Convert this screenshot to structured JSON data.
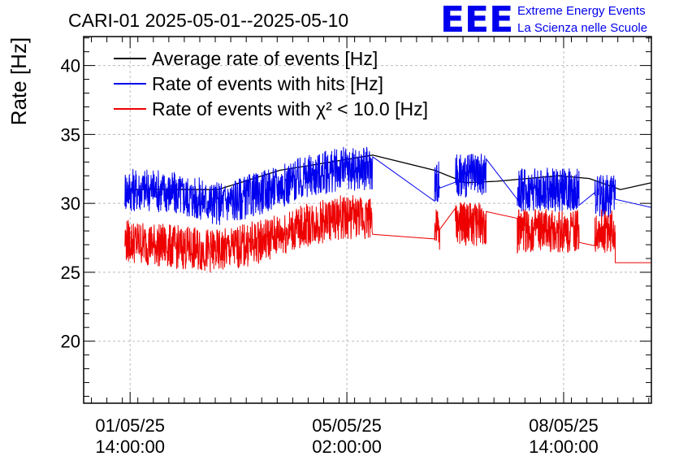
{
  "brand": {
    "logo": "EEE",
    "line1": "Extreme Energy Events",
    "line2": "La Scienza nelle Scuole",
    "color": "#0000ee"
  },
  "chart_data": {
    "type": "line",
    "title": "CARI-01 2025-05-01--2025-05-10",
    "ylabel": "Rate [Hz]",
    "xlabel": "",
    "ylim": [
      15.5,
      42.1
    ],
    "yticks": [
      20,
      25,
      30,
      35,
      40
    ],
    "xlim": [
      "2025-04-30T20:00:00",
      "2025-05-10T00:00:00"
    ],
    "xticks": [
      {
        "time": "2025-05-01T14:00:00",
        "date": "01/05/25",
        "clock": "14:00:00"
      },
      {
        "time": "2025-05-05T02:00:00",
        "date": "05/05/25",
        "clock": "02:00:00"
      },
      {
        "time": "2025-05-08T14:00:00",
        "date": "08/05/25",
        "clock": "14:00:00"
      }
    ],
    "grid": true,
    "legend_position": "top-left",
    "series": [
      {
        "name": "Average rate of events [Hz]",
        "color": "#000000",
        "style": "stepped",
        "points": [
          [
            "2025-05-01T12:00:00",
            31.0
          ],
          [
            "2025-05-03T00:00:00",
            31.0
          ],
          [
            "2025-05-04T00:00:00",
            32.4
          ],
          [
            "2025-05-05T12:00:00",
            33.5
          ],
          [
            "2025-05-06T12:00:00",
            32.4
          ],
          [
            "2025-05-07T00:00:00",
            31.5
          ],
          [
            "2025-05-07T12:00:00",
            31.6
          ],
          [
            "2025-05-08T12:00:00",
            32.0
          ],
          [
            "2025-05-09T00:00:00",
            31.8
          ],
          [
            "2025-05-09T12:00:00",
            31.0
          ],
          [
            "2025-05-10T00:00:00",
            31.5
          ]
        ]
      },
      {
        "name": "Rate of events with hits [Hz]",
        "color": "#0000ee",
        "style": "noisy",
        "trend": [
          [
            "2025-05-01T12:00:00",
            31.0
          ],
          [
            "2025-05-02T00:00:00",
            31.0
          ],
          [
            "2025-05-03T00:00:00",
            30.0
          ],
          [
            "2025-05-03T12:00:00",
            30.5
          ],
          [
            "2025-05-04T12:00:00",
            32.0
          ],
          [
            "2025-05-05T00:00:00",
            32.5
          ],
          [
            "2025-05-05T12:00:00",
            32.5
          ]
        ],
        "segments": [
          [
            "2025-05-06T12:00:00",
            "2025-05-06T14:00:00",
            31.5
          ],
          [
            "2025-05-06T20:00:00",
            "2025-05-07T08:00:00",
            32.0
          ],
          [
            "2025-05-07T20:00:00",
            "2025-05-08T20:00:00",
            31.0
          ],
          [
            "2025-05-09T02:00:00",
            "2025-05-09T10:00:00",
            30.5
          ]
        ],
        "end": [
          [
            "2025-05-09T10:00:00",
            30.3
          ],
          [
            "2025-05-10T00:00:00",
            29.7
          ],
          [
            "2025-05-10T00:00:00",
            31.7
          ]
        ]
      },
      {
        "name": "Rate of events with χ² < 10.0 [Hz]",
        "color": "#ee0000",
        "style": "noisy",
        "trend": [
          [
            "2025-05-01T12:00:00",
            27.3
          ],
          [
            "2025-05-02T00:00:00",
            27.0
          ],
          [
            "2025-05-03T00:00:00",
            26.5
          ],
          [
            "2025-05-03T12:00:00",
            27.0
          ],
          [
            "2025-05-04T12:00:00",
            28.5
          ],
          [
            "2025-05-05T00:00:00",
            29.0
          ],
          [
            "2025-05-05T12:00:00",
            29.0
          ]
        ],
        "segments": [
          [
            "2025-05-06T12:00:00",
            "2025-05-06T14:00:00",
            28.0
          ],
          [
            "2025-05-06T20:00:00",
            "2025-05-07T08:00:00",
            28.5
          ],
          [
            "2025-05-07T20:00:00",
            "2025-05-08T20:00:00",
            28.0
          ],
          [
            "2025-05-09T02:00:00",
            "2025-05-09T10:00:00",
            28.0
          ]
        ],
        "end": [
          [
            "2025-05-09T10:00:00",
            25.7
          ],
          [
            "2025-05-10T00:00:00",
            25.7
          ],
          [
            "2025-05-10T00:00:00",
            28.0
          ]
        ]
      }
    ]
  }
}
